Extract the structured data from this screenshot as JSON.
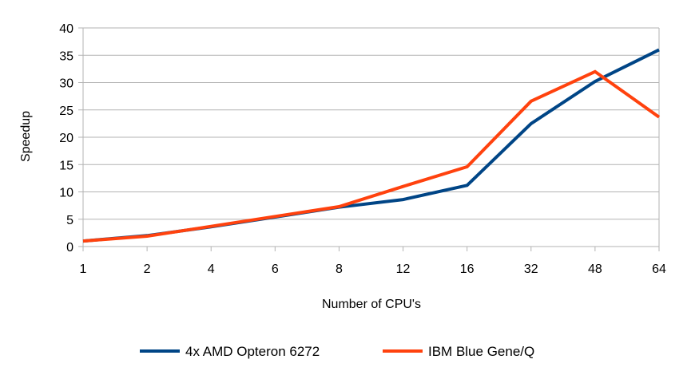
{
  "chart_data": {
    "type": "line",
    "categories": [
      "1",
      "2",
      "4",
      "6",
      "8",
      "12",
      "16",
      "32",
      "48",
      "64"
    ],
    "series": [
      {
        "name": "4x AMD Opteron 6272",
        "color": "#004586",
        "values": [
          1,
          2,
          3.6,
          5.4,
          7.2,
          8.6,
          11.2,
          22.5,
          30.2,
          36
        ]
      },
      {
        "name": "IBM Blue Gene/Q",
        "color": "#ff420e",
        "values": [
          1,
          1.9,
          3.7,
          5.5,
          7.3,
          11,
          14.6,
          26.6,
          32,
          23.7
        ]
      }
    ],
    "xlabel": "Number of CPU's",
    "ylabel": "Speedup",
    "ylim": [
      0,
      40
    ],
    "yticks": [
      0,
      5,
      10,
      15,
      20,
      25,
      30,
      35,
      40
    ],
    "grid": true,
    "legend_position": "bottom"
  }
}
